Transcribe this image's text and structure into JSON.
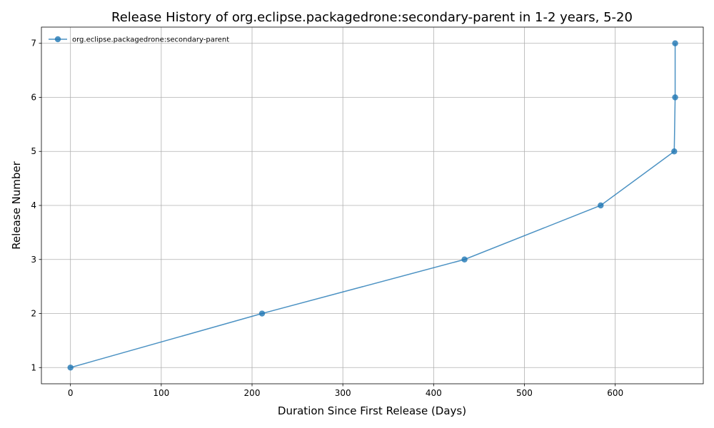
{
  "chart_data": {
    "type": "line",
    "title": "Release History of org.eclipse.packagedrone:secondary-parent in 1-2 years, 5-20",
    "xlabel": "Duration Since First Release (Days)",
    "ylabel": "Release Number",
    "xlim": [
      -32,
      697
    ],
    "ylim": [
      0.7,
      7.3
    ],
    "xticks": [
      0,
      100,
      200,
      300,
      400,
      500,
      600
    ],
    "yticks": [
      1,
      2,
      3,
      4,
      5,
      6,
      7
    ],
    "xtick_labels": [
      "0",
      "100",
      "200",
      "300",
      "400",
      "500",
      "600"
    ],
    "ytick_labels": [
      "1",
      "2",
      "3",
      "4",
      "5",
      "6",
      "7"
    ],
    "grid": true,
    "legend_position": "top-left",
    "series": [
      {
        "name": "org.eclipse.packagedrone:secondary-parent",
        "color": "#1f77b4",
        "marker": "circle",
        "x": [
          0,
          211,
          434,
          584,
          665,
          666,
          666
        ],
        "y": [
          1,
          2,
          3,
          4,
          5,
          6,
          7
        ]
      }
    ]
  }
}
